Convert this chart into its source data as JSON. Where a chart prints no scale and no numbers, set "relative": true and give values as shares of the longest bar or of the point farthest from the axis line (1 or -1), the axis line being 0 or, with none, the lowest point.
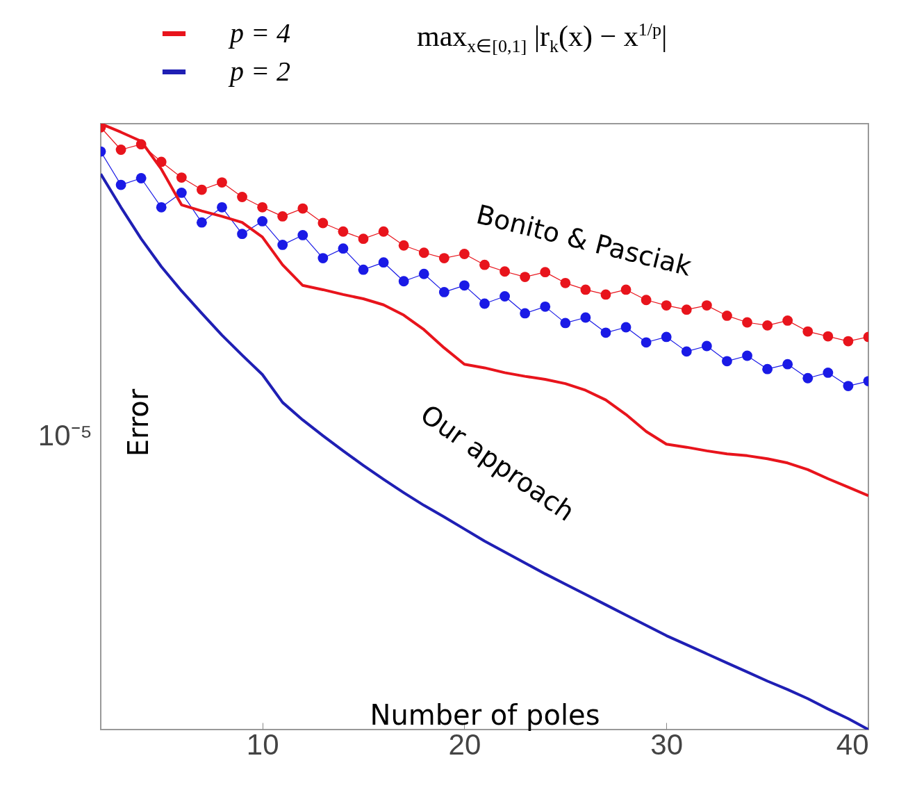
{
  "chart_data": {
    "type": "line",
    "title": "max$_{x∈[0,1]}$ |r$_{k}$(x) − x$^{1/p}$|",
    "xlabel": "Number of poles",
    "ylabel": "Error",
    "relative": true,
    "legend": "top left",
    "xlim": [
      2,
      40
    ],
    "xticks": [
      10,
      20,
      30,
      40
    ],
    "x": [
      2,
      3,
      4,
      5,
      6,
      7,
      8,
      9,
      10,
      11,
      12,
      13,
      14,
      15,
      16,
      17,
      18,
      19,
      20,
      21,
      22,
      23,
      24,
      25,
      26,
      27,
      28,
      29,
      30,
      31,
      32,
      33,
      34,
      35,
      36,
      37,
      38,
      39,
      40
    ],
    "series": [
      {
        "color": "#e8141c",
        "marker": "circle",
        "values": [
          0.994,
          0.957,
          0.966,
          0.937,
          0.911,
          0.891,
          0.903,
          0.879,
          0.862,
          0.847,
          0.86,
          0.836,
          0.822,
          0.81,
          0.822,
          0.799,
          0.787,
          0.778,
          0.785,
          0.767,
          0.756,
          0.747,
          0.755,
          0.737,
          0.726,
          0.718,
          0.726,
          0.709,
          0.7,
          0.693,
          0.7,
          0.683,
          0.672,
          0.667,
          0.675,
          0.657,
          0.649,
          0.641,
          0.648
        ]
      },
      {
        "color": "#1a1ae6",
        "marker": "circle",
        "values": [
          0.954,
          0.899,
          0.91,
          0.862,
          0.886,
          0.837,
          0.862,
          0.818,
          0.839,
          0.8,
          0.816,
          0.778,
          0.794,
          0.759,
          0.771,
          0.74,
          0.752,
          0.722,
          0.733,
          0.703,
          0.715,
          0.687,
          0.698,
          0.671,
          0.68,
          0.655,
          0.664,
          0.639,
          0.648,
          0.624,
          0.633,
          0.608,
          0.617,
          0.595,
          0.603,
          0.58,
          0.589,
          0.567,
          0.575
        ]
      },
      {
        "name": "p = 4",
        "color": "#e8141c",
        "values": [
          1,
          0.986,
          0.971,
          0.925,
          0.866,
          0.856,
          0.847,
          0.837,
          0.813,
          0.767,
          0.733,
          0.726,
          0.718,
          0.711,
          0.701,
          0.684,
          0.66,
          0.63,
          0.603,
          0.597,
          0.589,
          0.583,
          0.578,
          0.571,
          0.56,
          0.544,
          0.52,
          0.492,
          0.471,
          0.466,
          0.46,
          0.455,
          0.452,
          0.447,
          0.44,
          0.429,
          0.414,
          0.4,
          0.386
        ]
      },
      {
        "name": "p = 2",
        "color": "#1f1fb4",
        "values": [
          0.917,
          0.862,
          0.81,
          0.764,
          0.724,
          0.687,
          0.651,
          0.618,
          0.586,
          0.54,
          0.511,
          0.485,
          0.46,
          0.436,
          0.413,
          0.391,
          0.37,
          0.351,
          0.331,
          0.311,
          0.293,
          0.275,
          0.257,
          0.24,
          0.223,
          0.206,
          0.189,
          0.172,
          0.155,
          0.14,
          0.125,
          0.11,
          0.095,
          0.08,
          0.066,
          0.051,
          0.034,
          0.018,
          0
        ]
      }
    ],
    "annotations": [
      "Bonito & Pasciak",
      "Our approach",
      "10⁻⁵"
    ]
  }
}
